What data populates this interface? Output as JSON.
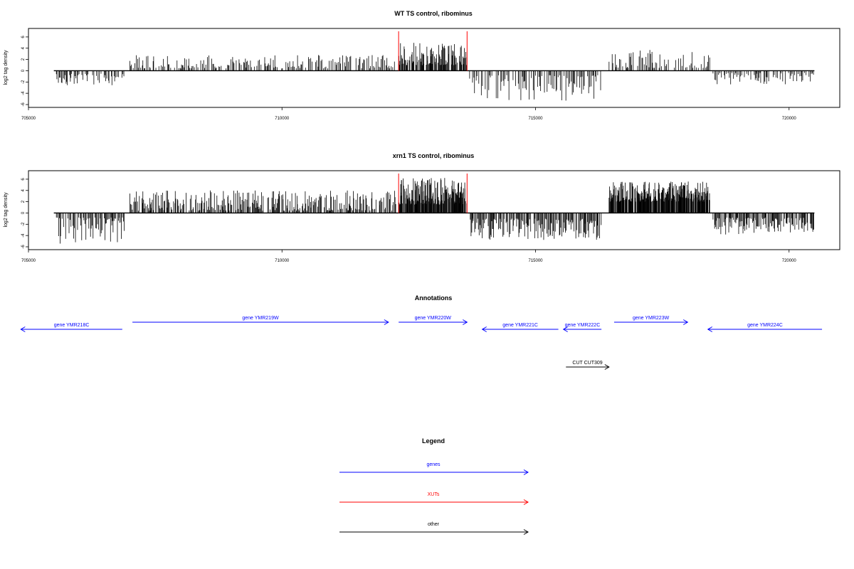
{
  "colors": {
    "signal": "#000000",
    "xut": "#ff0000",
    "gene": "#0000ff",
    "other": "#000000"
  },
  "chart_data": [
    {
      "type": "bar",
      "title": "WT TS control, ribominus",
      "ylabel": "log2 tag density",
      "xlim": [
        705000,
        721000
      ],
      "ylim": [
        -6,
        7
      ],
      "x_ticks": [
        705000,
        710000,
        715000,
        720000
      ],
      "x_tick_labels": [
        "705000",
        "710000",
        "715000",
        "720000"
      ],
      "y_ticks": [
        -6,
        -4,
        -2,
        0,
        2,
        4,
        6
      ],
      "y_tick_labels": [
        "-6",
        "-4",
        "-2",
        "0",
        "2",
        "4",
        "6"
      ],
      "baseline": [
        705500,
        720500
      ],
      "xut_markers": [
        712300,
        713650
      ],
      "signal_segments": [
        {
          "from": 705550,
          "to": 706900,
          "sign": -1,
          "min": 0.5,
          "max": 2.6
        },
        {
          "from": 707000,
          "to": 712250,
          "sign": 1,
          "min": 0.4,
          "max": 2.8
        },
        {
          "from": 712300,
          "to": 713650,
          "sign": 1,
          "min": 1.0,
          "max": 5.0
        },
        {
          "from": 713700,
          "to": 716300,
          "sign": -1,
          "min": 0.8,
          "max": 5.5
        },
        {
          "from": 716450,
          "to": 718450,
          "sign": 1,
          "min": 0.5,
          "max": 3.7
        },
        {
          "from": 718500,
          "to": 720500,
          "sign": -1,
          "min": 0.4,
          "max": 2.5
        }
      ]
    },
    {
      "type": "bar",
      "title": "xrn1 TS control, ribominus",
      "ylabel": "log2 tag density",
      "xlim": [
        705000,
        721000
      ],
      "ylim": [
        -6,
        7
      ],
      "x_ticks": [
        705000,
        710000,
        715000,
        720000
      ],
      "x_tick_labels": [
        "705000",
        "710000",
        "715000",
        "720000"
      ],
      "y_ticks": [
        -6,
        -4,
        -2,
        0,
        2,
        4,
        6
      ],
      "y_tick_labels": [
        "-6",
        "-4",
        "-2",
        "0",
        "2",
        "4",
        "6"
      ],
      "baseline": [
        705500,
        720500
      ],
      "xut_markers": [
        712300,
        713650
      ],
      "signal_segments": [
        {
          "from": 705550,
          "to": 706900,
          "sign": -1,
          "min": 0.8,
          "max": 5.6
        },
        {
          "from": 707000,
          "to": 712250,
          "sign": 1,
          "min": 0.4,
          "max": 4.0
        },
        {
          "from": 712300,
          "to": 713650,
          "sign": 1,
          "min": 1.5,
          "max": 6.5
        },
        {
          "from": 713700,
          "to": 716300,
          "sign": -1,
          "min": 1.0,
          "max": 4.8
        },
        {
          "from": 716450,
          "to": 718450,
          "sign": 1,
          "min": 2.0,
          "max": 5.6
        },
        {
          "from": 718500,
          "to": 720500,
          "sign": -1,
          "min": 0.8,
          "max": 4.0
        }
      ]
    }
  ],
  "annotations": {
    "title": "Annotations",
    "xlim": [
      705000,
      721000
    ],
    "features": [
      {
        "label": "gene YMR218C",
        "start": 704850,
        "end": 706850,
        "strand": "-",
        "type": "gene"
      },
      {
        "label": "gene YMR219W",
        "start": 707050,
        "end": 712100,
        "strand": "+",
        "type": "gene"
      },
      {
        "label": "gene YMR220W",
        "start": 712300,
        "end": 713650,
        "strand": "+",
        "type": "gene"
      },
      {
        "label": "gene YMR221C",
        "start": 713950,
        "end": 715450,
        "strand": "-",
        "type": "gene"
      },
      {
        "label": "gene YMR222C",
        "start": 715550,
        "end": 716300,
        "strand": "-",
        "type": "gene"
      },
      {
        "label": "gene YMR223W",
        "start": 716550,
        "end": 718000,
        "strand": "+",
        "type": "gene"
      },
      {
        "label": "gene YMR224C",
        "start": 718400,
        "end": 720650,
        "strand": "-",
        "type": "gene"
      },
      {
        "label": "CUT CUT309",
        "start": 715600,
        "end": 716450,
        "strand": "+",
        "type": "other"
      }
    ]
  },
  "legend": {
    "title": "Legend",
    "items": [
      {
        "label": "genes",
        "type": "gene"
      },
      {
        "label": "XUTs",
        "type": "xut"
      },
      {
        "label": "other",
        "type": "other"
      }
    ]
  }
}
